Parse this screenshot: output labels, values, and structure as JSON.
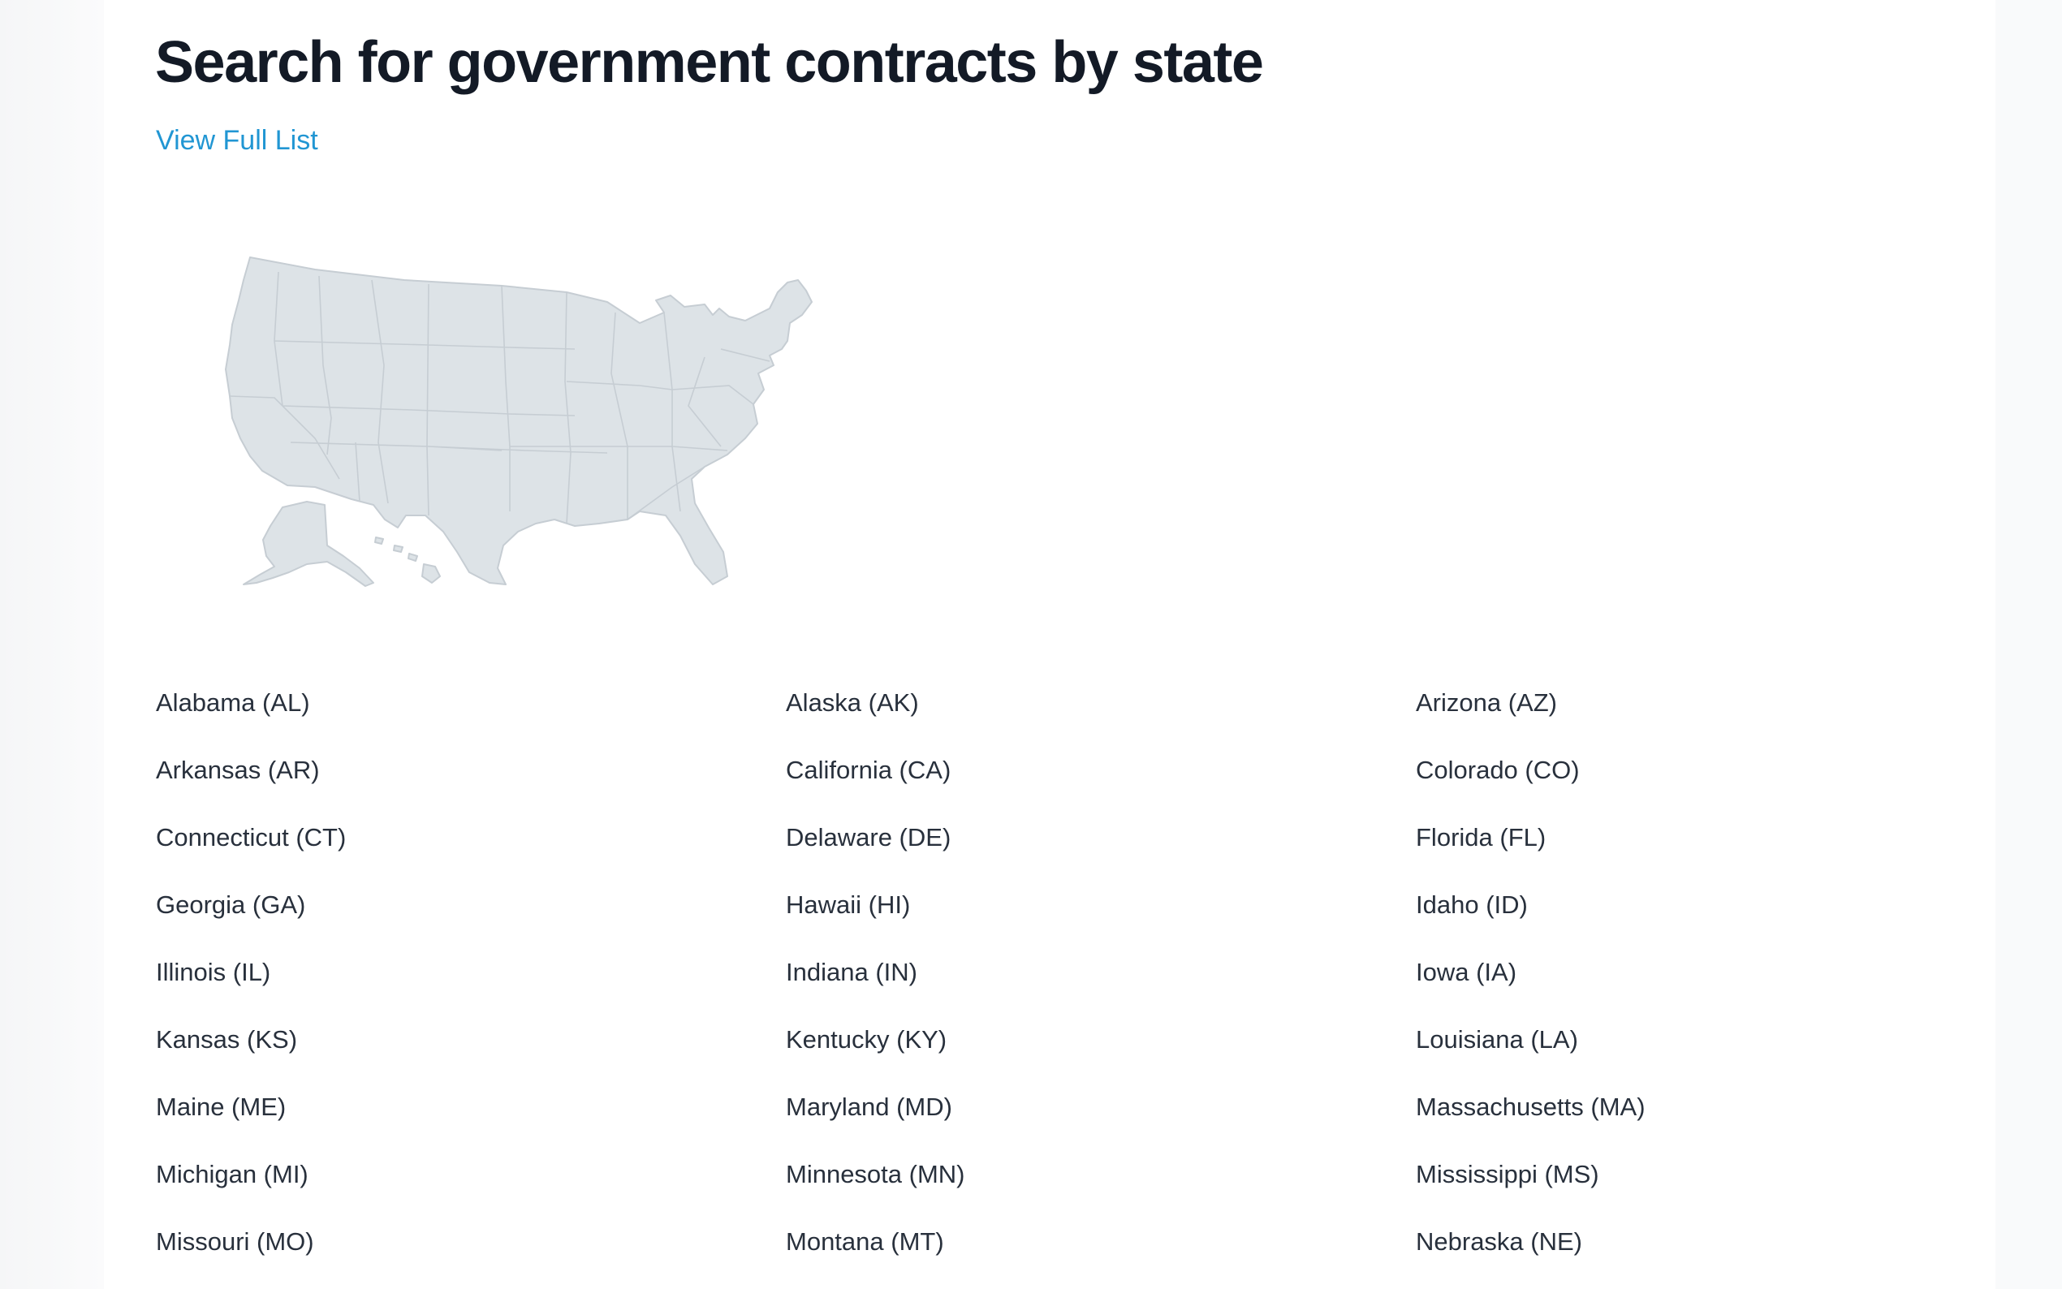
{
  "header": {
    "title": "Search for government contracts by state",
    "view_full_list": "View Full List"
  },
  "map": {
    "land_color": "#dde3e7",
    "border_color": "#c6cdd3"
  },
  "colors": {
    "title": "#131a26",
    "link": "#2196d3",
    "state_text": "#28303c"
  },
  "states": [
    "Alabama (AL)",
    "Alaska (AK)",
    "Arizona (AZ)",
    "Arkansas (AR)",
    "California (CA)",
    "Colorado (CO)",
    "Connecticut (CT)",
    "Delaware (DE)",
    "Florida (FL)",
    "Georgia (GA)",
    "Hawaii (HI)",
    "Idaho (ID)",
    "Illinois (IL)",
    "Indiana (IN)",
    "Iowa (IA)",
    "Kansas (KS)",
    "Kentucky (KY)",
    "Louisiana (LA)",
    "Maine (ME)",
    "Maryland (MD)",
    "Massachusetts (MA)",
    "Michigan (MI)",
    "Minnesota (MN)",
    "Mississippi (MS)",
    "Missouri (MO)",
    "Montana (MT)",
    "Nebraska (NE)"
  ]
}
